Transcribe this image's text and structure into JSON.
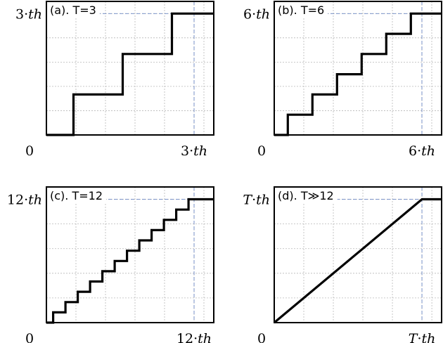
{
  "chart_data": [
    {
      "type": "line",
      "title": "(a). T=3",
      "x_tick_labels": [
        "0",
        "3·th"
      ],
      "y_tick_labels": [
        "3·th"
      ],
      "xlim": [
        0,
        3.4
      ],
      "ylim": [
        0,
        3.3
      ],
      "x_ref": 3,
      "y_ref": 3,
      "x_grid": [
        0.6,
        1.2,
        1.8,
        2.4,
        3.0,
        3.2
      ],
      "y_grid": [
        0.6,
        1.2,
        1.8,
        2.4,
        3.0
      ],
      "series": [
        {
          "x": [
            0,
            0.55,
            0.55,
            1.55,
            1.55,
            2.55,
            2.55,
            3.4
          ],
          "y": [
            0,
            0,
            1,
            1,
            2,
            2,
            3,
            3
          ]
        }
      ]
    },
    {
      "type": "line",
      "title": "(b). T=6",
      "x_tick_labels": [
        "0",
        "6·th"
      ],
      "y_tick_labels": [
        "6·th"
      ],
      "xlim": [
        0,
        6.8
      ],
      "ylim": [
        0,
        6.6
      ],
      "x_grid": [
        1.2,
        2.4,
        3.6,
        4.8,
        6.0,
        6.4
      ],
      "y_grid": [
        1.2,
        2.4,
        3.6,
        4.8,
        6.0
      ],
      "x_ref": 6,
      "y_ref": 6,
      "series": [
        {
          "x": [
            0,
            0.55,
            0.55,
            1.55,
            1.55,
            2.55,
            2.55,
            3.55,
            3.55,
            4.55,
            4.55,
            5.55,
            5.55,
            6.8
          ],
          "y": [
            0,
            0,
            1,
            1,
            2,
            2,
            3,
            3,
            4,
            4,
            5,
            5,
            6,
            6
          ]
        }
      ]
    },
    {
      "type": "line",
      "title": "(c). T=12",
      "x_tick_labels": [
        "0",
        "12·th"
      ],
      "y_tick_labels": [
        "12·th"
      ],
      "xlim": [
        0,
        13.6
      ],
      "ylim": [
        0,
        13.2
      ],
      "x_grid": [
        2.4,
        4.8,
        7.2,
        9.6,
        12.0,
        12.8
      ],
      "y_grid": [
        2.4,
        4.8,
        7.2,
        9.6,
        12.0
      ],
      "x_ref": 12,
      "y_ref": 12,
      "series": [
        {
          "x": [
            0,
            0.55,
            0.55,
            1.55,
            1.55,
            2.55,
            2.55,
            3.55,
            3.55,
            4.55,
            4.55,
            5.55,
            5.55,
            6.55,
            6.55,
            7.55,
            7.55,
            8.55,
            8.55,
            9.55,
            9.55,
            10.55,
            10.55,
            11.55,
            11.55,
            13.6
          ],
          "y": [
            0,
            0,
            1,
            1,
            2,
            2,
            3,
            3,
            4,
            4,
            5,
            5,
            6,
            6,
            7,
            7,
            8,
            8,
            9,
            9,
            10,
            10,
            11,
            11,
            12,
            12
          ]
        }
      ]
    },
    {
      "type": "line",
      "title": "(d). T≫12",
      "x_tick_labels": [
        "0",
        "T·th"
      ],
      "y_tick_labels": [
        "T·th"
      ],
      "xlim": [
        0,
        1.133
      ],
      "ylim": [
        0,
        1.1
      ],
      "x_grid": [
        0.2,
        0.4,
        0.6,
        0.8,
        1.0,
        1.067
      ],
      "y_grid": [
        0.2,
        0.4,
        0.6,
        0.8,
        1.0
      ],
      "x_ref": 1,
      "y_ref": 1,
      "series": [
        {
          "x": [
            0,
            1,
            1.133
          ],
          "y": [
            0,
            1,
            1
          ]
        }
      ]
    }
  ]
}
